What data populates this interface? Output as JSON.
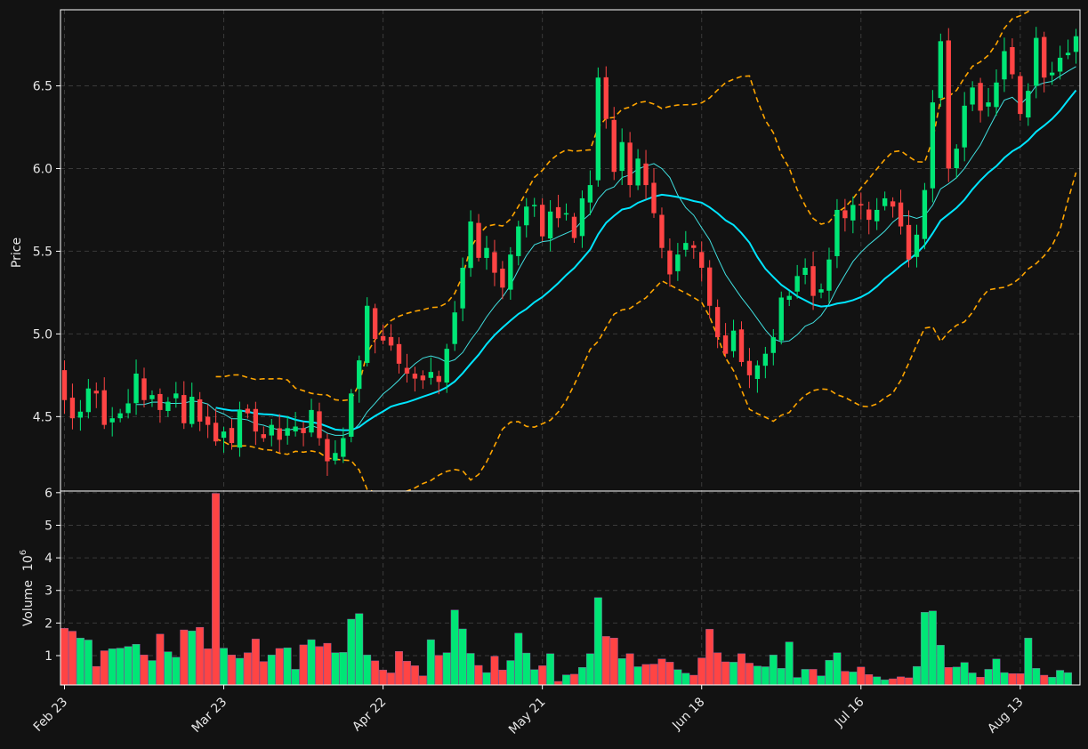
{
  "chart_data": [
    {
      "type": "candlestick",
      "ylabel": "Price",
      "ylim": [
        4.05,
        6.96
      ],
      "yticks": [
        4.5,
        5.0,
        5.5,
        6.0,
        6.5
      ],
      "ytick_labels": [
        "4.5",
        "5.0",
        "5.5",
        "6.0",
        "6.5"
      ],
      "x_tick_labels": [
        "Feb 23",
        "Mar 23",
        "Apr 22",
        "May 21",
        "Jun 18",
        "Jul 16",
        "Aug 13"
      ],
      "x_tick_index": [
        0,
        20,
        40,
        60,
        80,
        100,
        120
      ],
      "grid": true,
      "up_color": "#00e676",
      "down_color": "#ff4444",
      "ma_short_color": "#40e0e0",
      "ma_long_color": "#00e5ff",
      "band_color": "#ffa500",
      "close": [
        4.6,
        4.49,
        4.53,
        4.67,
        4.64,
        4.45,
        4.49,
        4.52,
        4.58,
        4.76,
        4.6,
        4.63,
        4.54,
        4.59,
        4.64,
        4.46,
        4.62,
        4.47,
        4.45,
        4.35,
        4.41,
        4.34,
        4.54,
        4.52,
        4.41,
        4.37,
        4.45,
        4.36,
        4.43,
        4.44,
        4.4,
        4.54,
        4.37,
        4.23,
        4.28,
        4.37,
        4.64,
        4.84,
        5.17,
        4.97,
        4.96,
        4.93,
        4.82,
        4.76,
        4.73,
        4.72,
        4.77,
        4.71,
        4.91,
        5.13,
        5.4,
        5.68,
        5.46,
        5.52,
        5.37,
        5.28,
        5.48,
        5.65,
        5.77,
        5.78,
        5.59,
        5.74,
        5.7,
        5.73,
        5.58,
        5.82,
        5.9,
        6.55,
        6.3,
        5.98,
        6.16,
        5.9,
        6.06,
        5.9,
        5.73,
        5.52,
        5.36,
        5.48,
        5.55,
        5.52,
        5.4,
        5.17,
        4.98,
        4.88,
        5.02,
        4.83,
        4.75,
        4.81,
        4.88,
        4.98,
        5.22,
        5.23,
        5.35,
        5.4,
        5.23,
        5.27,
        5.45,
        5.75,
        5.7,
        5.78,
        5.78,
        5.69,
        5.75,
        5.82,
        5.77,
        5.65,
        5.45,
        5.6,
        5.87,
        6.4,
        6.77,
        6.0,
        6.12,
        6.38,
        6.49,
        6.35,
        6.4,
        6.52,
        6.71,
        6.57,
        6.33,
        6.47,
        6.79,
        6.55,
        6.58,
        6.67,
        6.7,
        6.8
      ]
    },
    {
      "type": "bar",
      "ylabel": "Volume",
      "yscale_label": "10",
      "yscale_exp": "6",
      "ylim": [
        0.1,
        6.05
      ],
      "yticks": [
        1,
        2,
        3,
        4,
        5,
        6
      ],
      "ytick_labels": [
        "1",
        "2",
        "3",
        "4",
        "5",
        "6"
      ],
      "values": [
        1.84,
        1.75,
        1.54,
        1.48,
        0.67,
        1.15,
        1.21,
        1.23,
        1.28,
        1.35,
        1.02,
        0.85,
        1.66,
        1.12,
        0.95,
        1.79,
        1.76,
        1.87,
        1.21,
        5.98,
        1.23,
        1.02,
        0.92,
        1.09,
        1.51,
        0.82,
        1.02,
        1.22,
        1.24,
        0.58,
        1.33,
        1.49,
        1.28,
        1.38,
        1.09,
        1.1,
        2.12,
        2.29,
        1.02,
        0.84,
        0.56,
        0.47,
        1.13,
        0.83,
        0.69,
        0.38,
        1.49,
        1.01,
        1.09,
        2.4,
        1.82,
        1.07,
        0.7,
        0.48,
        0.98,
        0.56,
        0.85,
        1.69,
        1.08,
        0.57,
        0.69,
        1.06,
        0.21,
        0.41,
        0.43,
        0.64,
        1.06,
        2.78,
        1.59,
        1.54,
        0.91,
        1.06,
        0.66,
        0.73,
        0.74,
        0.9,
        0.8,
        0.57,
        0.46,
        0.4,
        0.93,
        1.81,
        1.09,
        0.81,
        0.8,
        1.06,
        0.77,
        0.68,
        0.66,
        1.02,
        0.61,
        1.42,
        0.33,
        0.58,
        0.58,
        0.38,
        0.86,
        1.09,
        0.52,
        0.5,
        0.65,
        0.42,
        0.35,
        0.26,
        0.29,
        0.35,
        0.32,
        0.67,
        2.33,
        2.37,
        1.32,
        0.64,
        0.65,
        0.79,
        0.47,
        0.34,
        0.58,
        0.9,
        0.48,
        0.45,
        0.45,
        1.54,
        0.61,
        0.4,
        0.34,
        0.55,
        0.48
      ]
    }
  ]
}
